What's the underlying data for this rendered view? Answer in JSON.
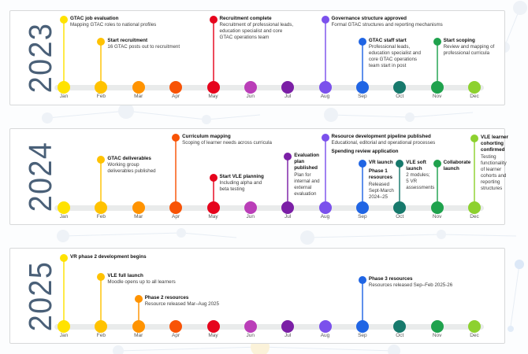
{
  "months": [
    "Jan",
    "Feb",
    "Mar",
    "Apr",
    "May",
    "Jun",
    "Jul",
    "Aug",
    "Sep",
    "Oct",
    "Nov",
    "Dec"
  ],
  "palette": {
    "month_colors": [
      "#FFE200",
      "#FFC200",
      "#FF9300",
      "#F85306",
      "#E6041C",
      "#BA3EB8",
      "#7B1FA6",
      "#7B51EC",
      "#2065E4",
      "#17796C",
      "#1FA24D",
      "#8DD12F"
    ],
    "year_color": "#4A6078",
    "track_color": "#E9EBEB",
    "panel_border": "#D7D9DA",
    "title_color": "#0F0F0F",
    "desc_color": "#3B3B3B",
    "month_label_color": "#565656"
  },
  "panels": [
    {
      "year": "2023",
      "milestones": [
        {
          "m": 0,
          "y": 11,
          "name": "gtac-job-evaluation",
          "segments": [
            {
              "t": "GTAC job evaluation",
              "b": true
            },
            {
              "t": "Mapping GTAC roles to national profiles",
              "b": false
            }
          ]
        },
        {
          "m": 1,
          "y": 39,
          "name": "start-recruitment",
          "segments": [
            {
              "t": "Start recruitment",
              "b": true
            },
            {
              "t": "16 GTAC posts out to recruitment",
              "b": false
            }
          ]
        },
        {
          "m": 4,
          "y": 11,
          "name": "recruitment-complete",
          "segments": [
            {
              "t": "Recruitment complete",
              "b": true
            },
            {
              "t": "Recruitment of professional leads,",
              "b": false
            },
            {
              "t": "education specialist and core",
              "b": false
            },
            {
              "t": "GTAC operations team",
              "b": false
            }
          ]
        },
        {
          "m": 7,
          "y": 11,
          "name": "governance-structure-approved",
          "segments": [
            {
              "t": "Governance structure approved",
              "b": true
            },
            {
              "t": "Formal GTAC structures and reporting mechanisms",
              "b": false
            }
          ]
        },
        {
          "m": 8,
          "y": 39,
          "name": "gtac-staff-start",
          "segments": [
            {
              "t": "GTAC staff start",
              "b": true
            },
            {
              "t": "Professional leads,",
              "b": false
            },
            {
              "t": "education specialist and",
              "b": false
            },
            {
              "t": "core GTAC operations",
              "b": false
            },
            {
              "t": "team start in post",
              "b": false
            }
          ]
        },
        {
          "m": 10,
          "y": 39,
          "name": "start-scoping",
          "segments": [
            {
              "t": "Start scoping",
              "b": true
            },
            {
              "t": "Review and mapping of",
              "b": false
            },
            {
              "t": "professional curricula",
              "b": false
            }
          ]
        }
      ]
    },
    {
      "year": "2024",
      "milestones": [
        {
          "m": 1,
          "y": 39,
          "name": "gtac-deliverables",
          "segments": [
            {
              "t": "GTAC deliverables",
              "b": true
            },
            {
              "t": "Working group",
              "b": false
            },
            {
              "t": "deliverables published",
              "b": false
            }
          ]
        },
        {
          "m": 3,
          "y": 11,
          "name": "curriculum-mapping",
          "segments": [
            {
              "t": "Curriculum mapping",
              "b": true
            },
            {
              "t": "Scoping of learner needs across curricula",
              "b": false
            }
          ]
        },
        {
          "m": 4,
          "y": 62,
          "name": "start-vle-planning",
          "segments": [
            {
              "t": "Start VLE planning",
              "b": true
            },
            {
              "t": "Including alpha and",
              "b": false
            },
            {
              "t": "beta testing",
              "b": false
            }
          ]
        },
        {
          "m": 6,
          "y": 35,
          "name": "evaluation-plan-published",
          "segments": [
            {
              "t": "Evaluation",
              "b": true
            },
            {
              "t": "plan",
              "b": true
            },
            {
              "t": "published",
              "b": true
            },
            {
              "t": "Plan for",
              "b": false
            },
            {
              "t": "internal and",
              "b": false
            },
            {
              "t": "external",
              "b": false
            },
            {
              "t": "evaluation",
              "b": false
            }
          ]
        },
        {
          "m": 7,
          "y": 11,
          "name": "resource-development-pipeline-published",
          "segments": [
            {
              "t": "Resource development pipeline published",
              "b": true
            },
            {
              "t": "Educational, editorial and operational processes",
              "b": false
            },
            {
              "t": "Spending review application",
              "b": true,
              "gap": true
            }
          ]
        },
        {
          "m": 8,
          "y": 44,
          "name": "vr-launch",
          "segments": [
            {
              "t": "VR launch",
              "b": true
            },
            {
              "t": "Phase 1",
              "b": true,
              "gap": true
            },
            {
              "t": "resources",
              "b": true
            },
            {
              "t": "Released",
              "b": false
            },
            {
              "t": "Sept-March",
              "b": false
            },
            {
              "t": "2024–25",
              "b": false
            }
          ]
        },
        {
          "m": 9,
          "y": 44,
          "name": "vle-soft-launch",
          "segments": [
            {
              "t": "VLE soft",
              "b": true
            },
            {
              "t": "launch",
              "b": true
            },
            {
              "t": "2 modules;",
              "b": false
            },
            {
              "t": "5 VR",
              "b": false
            },
            {
              "t": "assessments",
              "b": false
            }
          ]
        },
        {
          "m": 10,
          "y": 44,
          "name": "collaborate-launch",
          "segments": [
            {
              "t": "Collaborate",
              "b": true
            },
            {
              "t": "launch",
              "b": true
            }
          ]
        },
        {
          "m": 11,
          "y": 12,
          "name": "vle-learner-cohorting-confirmed",
          "segments": [
            {
              "t": "VLE learner",
              "b": true
            },
            {
              "t": "cohorting",
              "b": true
            },
            {
              "t": "confirmed",
              "b": true
            },
            {
              "t": "Testing",
              "b": false
            },
            {
              "t": "functionality",
              "b": false
            },
            {
              "t": "of learner",
              "b": false
            },
            {
              "t": "cohorts and",
              "b": false
            },
            {
              "t": "reporting",
              "b": false
            },
            {
              "t": "structures",
              "b": false
            }
          ]
        }
      ]
    },
    {
      "year": "2025",
      "milestones": [
        {
          "m": 0,
          "y": 12,
          "name": "vr-phase-2-development-begins",
          "segments": [
            {
              "t": "VR phase 2 development begins",
              "b": true
            }
          ]
        },
        {
          "m": 1,
          "y": 36,
          "name": "vle-full-launch",
          "segments": [
            {
              "t": "VLE full launch",
              "b": true
            },
            {
              "t": "Moodle opens up to all learners",
              "b": false
            }
          ]
        },
        {
          "m": 2,
          "y": 64,
          "name": "phase-2-resources",
          "segments": [
            {
              "t": "Phase 2 resources",
              "b": true
            },
            {
              "t": "Resource released Mar–Aug 2025",
              "b": false
            }
          ]
        },
        {
          "m": 8,
          "y": 40,
          "name": "phase-3-resources",
          "segments": [
            {
              "t": "Phase 3 resources",
              "b": true
            },
            {
              "t": "Resources released Sep–Feb 2025-26",
              "b": false
            }
          ]
        }
      ]
    }
  ]
}
